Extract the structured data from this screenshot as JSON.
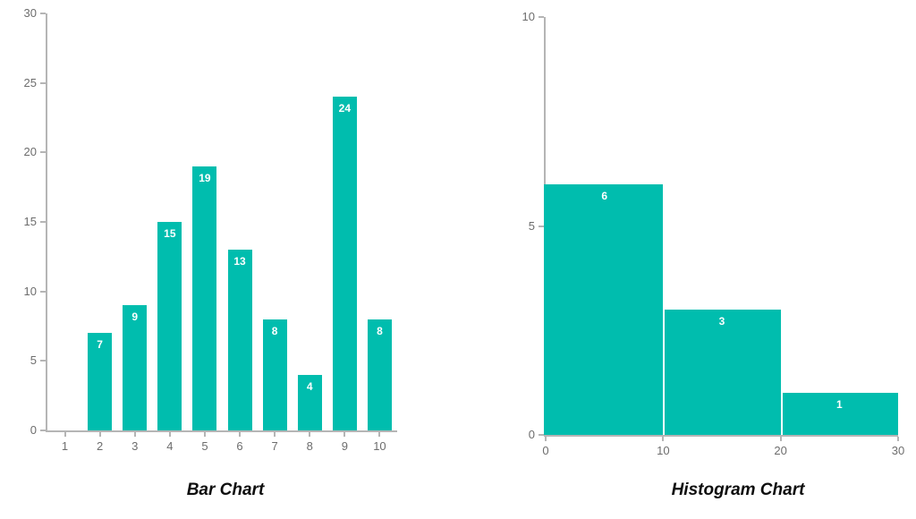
{
  "style": {
    "background": "#ffffff",
    "accent_teal": "#00bdae",
    "axis_line_color": "#b5b5b5",
    "axis_label_color": "#6d6d6d",
    "value_label_color": "#ffffff",
    "title_color": "#0e0e0e"
  },
  "chart_data": [
    {
      "type": "bar",
      "title": "Bar Chart",
      "categories": [
        "1",
        "2",
        "3",
        "4",
        "5",
        "6",
        "7",
        "8",
        "9",
        "10"
      ],
      "values": [
        null,
        7,
        9,
        15,
        19,
        13,
        8,
        4,
        24,
        8
      ],
      "xlabel": "",
      "ylabel": "",
      "ylim": [
        0,
        30
      ],
      "yticks": [
        0,
        5,
        10,
        15,
        20,
        25,
        30
      ],
      "grid": false,
      "legend": false,
      "value_labels": true,
      "bar_color": "#00bdae"
    },
    {
      "type": "histogram",
      "title": "Histogram Chart",
      "bin_edges": [
        0,
        10,
        20,
        30
      ],
      "counts": [
        6,
        3,
        1
      ],
      "xlabel": "",
      "ylabel": "",
      "ylim": [
        0,
        10
      ],
      "yticks": [
        0,
        5,
        10
      ],
      "xticks": [
        0,
        10,
        20,
        30
      ],
      "grid": false,
      "legend": false,
      "value_labels": true,
      "bar_color": "#00bdae"
    }
  ]
}
